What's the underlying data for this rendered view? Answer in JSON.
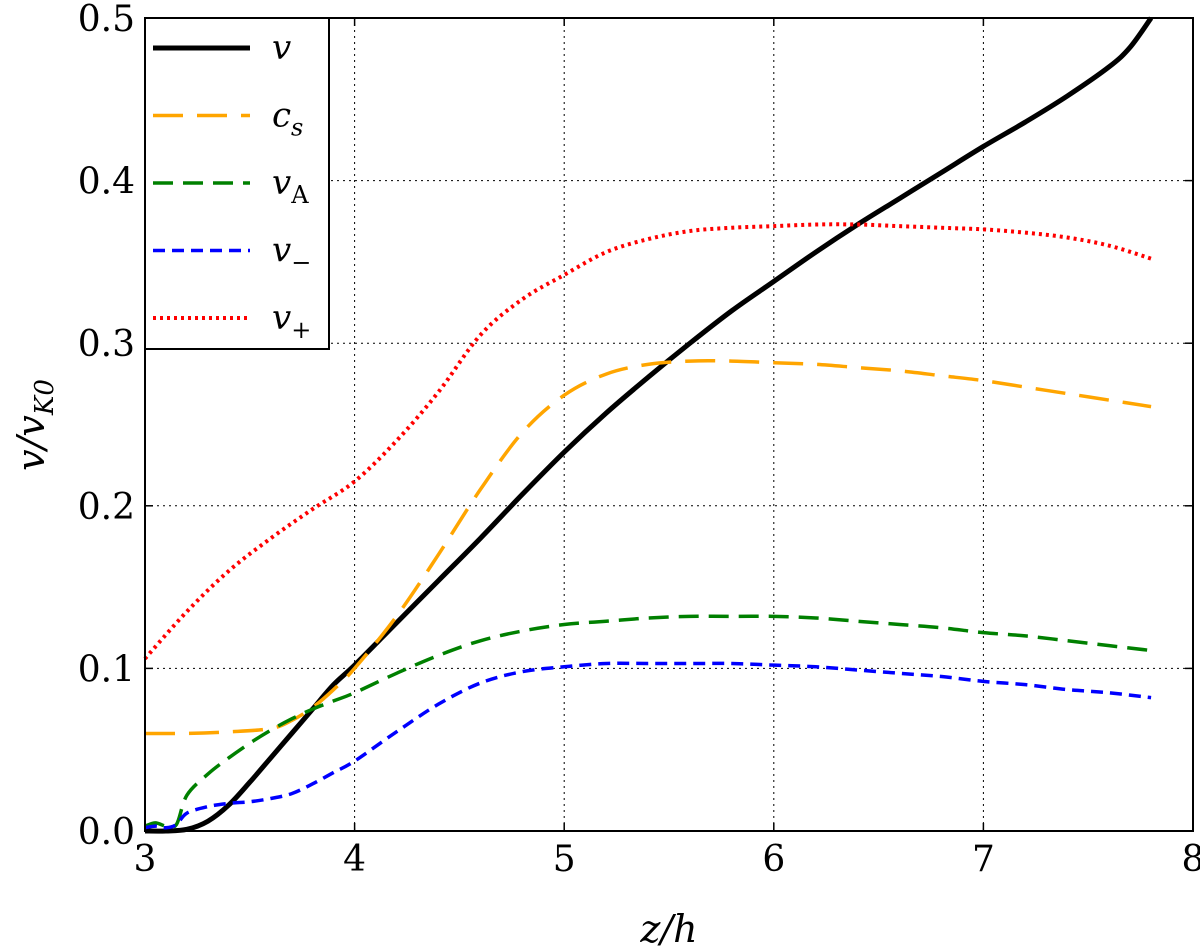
{
  "chart_data": {
    "type": "line",
    "title": "",
    "xlabel": "z/h",
    "ylabel": "v/v_K0",
    "xlim": [
      3,
      8
    ],
    "ylim": [
      0.0,
      0.5
    ],
    "xticks": [
      3,
      4,
      5,
      6,
      7,
      8
    ],
    "xtick_labels": [
      "3",
      "4",
      "5",
      "6",
      "7",
      "8"
    ],
    "yticks": [
      0.0,
      0.1,
      0.2,
      0.3,
      0.4,
      0.5
    ],
    "ytick_labels": [
      "0.0",
      "0.1",
      "0.2",
      "0.3",
      "0.4",
      "0.5"
    ],
    "grid": true,
    "legend_position": "top-left",
    "series": [
      {
        "name": "v",
        "color": "#000000",
        "style": "solid",
        "x": [
          3.0,
          3.1,
          3.2,
          3.3,
          3.4,
          3.5,
          3.6,
          3.7,
          3.8,
          3.9,
          4.0,
          4.2,
          4.4,
          4.6,
          4.8,
          5.0,
          5.2,
          5.4,
          5.6,
          5.8,
          6.0,
          6.2,
          6.4,
          6.6,
          6.8,
          7.0,
          7.2,
          7.4,
          7.6,
          7.7,
          7.8
        ],
        "y": [
          0.0,
          0.0,
          0.001,
          0.006,
          0.016,
          0.03,
          0.045,
          0.06,
          0.075,
          0.09,
          0.102,
          0.128,
          0.154,
          0.18,
          0.207,
          0.233,
          0.257,
          0.279,
          0.3,
          0.32,
          0.338,
          0.356,
          0.373,
          0.389,
          0.405,
          0.421,
          0.436,
          0.452,
          0.47,
          0.482,
          0.5
        ]
      },
      {
        "name": "c_s",
        "color": "#ffa500",
        "style": "dashed",
        "x": [
          3.0,
          3.2,
          3.4,
          3.6,
          3.7,
          3.8,
          3.9,
          4.0,
          4.2,
          4.4,
          4.6,
          4.8,
          5.0,
          5.2,
          5.4,
          5.6,
          5.8,
          6.0,
          6.2,
          6.4,
          6.6,
          6.8,
          7.0,
          7.2,
          7.4,
          7.6,
          7.8
        ],
        "y": [
          0.06,
          0.06,
          0.061,
          0.063,
          0.068,
          0.076,
          0.087,
          0.1,
          0.132,
          0.17,
          0.21,
          0.245,
          0.268,
          0.281,
          0.287,
          0.289,
          0.289,
          0.288,
          0.287,
          0.285,
          0.283,
          0.28,
          0.277,
          0.273,
          0.269,
          0.265,
          0.261
        ]
      },
      {
        "name": "v_A",
        "color": "#008000",
        "style": "dashed",
        "x": [
          3.0,
          3.05,
          3.1,
          3.15,
          3.2,
          3.3,
          3.4,
          3.5,
          3.6,
          3.7,
          3.8,
          3.9,
          4.0,
          4.2,
          4.4,
          4.6,
          4.8,
          5.0,
          5.2,
          5.4,
          5.6,
          5.8,
          6.0,
          6.2,
          6.4,
          6.6,
          6.8,
          7.0,
          7.2,
          7.4,
          7.6,
          7.8
        ],
        "y": [
          0.003,
          0.005,
          0.003,
          0.004,
          0.022,
          0.035,
          0.045,
          0.054,
          0.062,
          0.069,
          0.075,
          0.08,
          0.085,
          0.097,
          0.108,
          0.117,
          0.123,
          0.127,
          0.129,
          0.131,
          0.132,
          0.132,
          0.132,
          0.131,
          0.129,
          0.127,
          0.125,
          0.122,
          0.12,
          0.117,
          0.114,
          0.111
        ]
      },
      {
        "name": "v_−",
        "color": "#0000ff",
        "style": "dashed",
        "x": [
          3.0,
          3.05,
          3.1,
          3.15,
          3.2,
          3.3,
          3.4,
          3.5,
          3.6,
          3.7,
          3.8,
          3.9,
          4.0,
          4.2,
          4.4,
          4.6,
          4.8,
          5.0,
          5.2,
          5.4,
          5.6,
          5.8,
          6.0,
          6.2,
          6.4,
          6.6,
          6.8,
          7.0,
          7.2,
          7.4,
          7.6,
          7.8
        ],
        "y": [
          0.002,
          0.003,
          0.002,
          0.004,
          0.011,
          0.015,
          0.017,
          0.018,
          0.02,
          0.023,
          0.029,
          0.036,
          0.043,
          0.061,
          0.078,
          0.091,
          0.098,
          0.101,
          0.103,
          0.103,
          0.103,
          0.103,
          0.102,
          0.101,
          0.099,
          0.097,
          0.095,
          0.092,
          0.09,
          0.087,
          0.085,
          0.082
        ]
      },
      {
        "name": "v_+",
        "color": "#ff0000",
        "style": "dotted",
        "x": [
          3.0,
          3.2,
          3.4,
          3.6,
          3.8,
          4.0,
          4.2,
          4.4,
          4.6,
          4.8,
          5.0,
          5.2,
          5.4,
          5.6,
          5.8,
          6.0,
          6.2,
          6.4,
          6.6,
          6.8,
          7.0,
          7.2,
          7.4,
          7.6,
          7.8
        ],
        "y": [
          0.106,
          0.135,
          0.16,
          0.18,
          0.198,
          0.215,
          0.24,
          0.27,
          0.305,
          0.327,
          0.342,
          0.356,
          0.364,
          0.369,
          0.371,
          0.372,
          0.373,
          0.373,
          0.372,
          0.371,
          0.37,
          0.368,
          0.365,
          0.36,
          0.352
        ]
      }
    ]
  }
}
